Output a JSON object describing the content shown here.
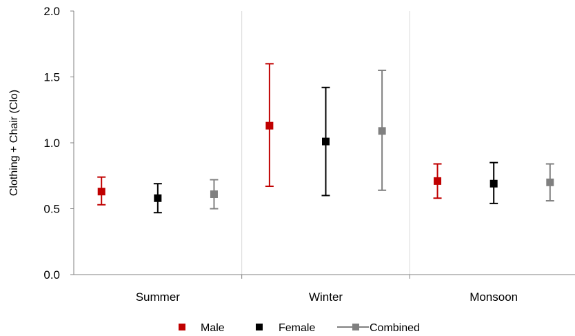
{
  "chart_data": {
    "type": "scatter",
    "title": "",
    "xlabel": "",
    "ylabel": "Clothing + Chair (Clo)",
    "ylim": [
      0,
      2
    ],
    "yticks": [
      "0.0",
      "0.5",
      "1.0",
      "1.5",
      "2.0"
    ],
    "categories": [
      "Summer",
      "Winter",
      "Monsoon"
    ],
    "grid": false,
    "category_separators": true,
    "legend_position": "bottom",
    "series": [
      {
        "name": "Male",
        "color": "#c00000",
        "values": [
          0.63,
          1.13,
          0.71
        ],
        "err_low": [
          0.53,
          0.67,
          0.58
        ],
        "err_high": [
          0.74,
          1.6,
          0.84
        ]
      },
      {
        "name": "Female",
        "color": "#000000",
        "values": [
          0.58,
          1.01,
          0.69
        ],
        "err_low": [
          0.47,
          0.6,
          0.54
        ],
        "err_high": [
          0.69,
          1.42,
          0.85
        ]
      },
      {
        "name": "Combined",
        "color": "#808080",
        "values": [
          0.61,
          1.09,
          0.7
        ],
        "err_low": [
          0.5,
          0.64,
          0.56
        ],
        "err_high": [
          0.72,
          1.55,
          0.84
        ]
      }
    ]
  }
}
